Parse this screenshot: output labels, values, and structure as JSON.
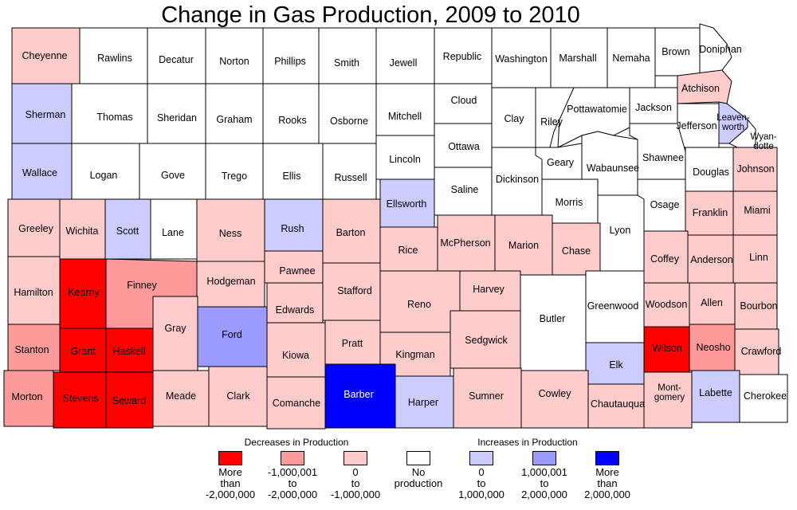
{
  "title": "Change in Gas Production, 2009 to 2010",
  "colors": {
    "dec_more_2m": "#ff0000",
    "dec_1m_2m": "#ff9a9a",
    "dec_0_1m": "#ffcccc",
    "none": "#ffffff",
    "inc_0_1m": "#ccccff",
    "inc_1m_2m": "#9a9aff",
    "inc_more_2m": "#0000ff"
  },
  "legend": {
    "decreases_heading": "Decreases in Production",
    "increases_heading": "Increases in Production",
    "items": [
      {
        "category": "dec_more_2m",
        "label": "More\nthan\n-2,000,000"
      },
      {
        "category": "dec_1m_2m",
        "label": "-1,000,001\nto\n-2,000,000"
      },
      {
        "category": "dec_0_1m",
        "label": "0\nto\n-1,000,000"
      },
      {
        "category": "none",
        "label": "No\nproduction"
      },
      {
        "category": "inc_0_1m",
        "label": "0\nto\n1,000,000"
      },
      {
        "category": "inc_1m_2m",
        "label": "1,000,001\nto\n2,000,000"
      },
      {
        "category": "inc_more_2m",
        "label": "More\nthan\n2,000,000"
      }
    ]
  },
  "counties": [
    {
      "name": "Cheyenne",
      "category": "dec_0_1m"
    },
    {
      "name": "Rawlins",
      "category": "none"
    },
    {
      "name": "Decatur",
      "category": "none"
    },
    {
      "name": "Norton",
      "category": "none"
    },
    {
      "name": "Phillips",
      "category": "none"
    },
    {
      "name": "Smith",
      "category": "none"
    },
    {
      "name": "Jewell",
      "category": "none"
    },
    {
      "name": "Republic",
      "category": "none"
    },
    {
      "name": "Washington",
      "category": "none"
    },
    {
      "name": "Marshall",
      "category": "none"
    },
    {
      "name": "Nemaha",
      "category": "none"
    },
    {
      "name": "Brown",
      "category": "none"
    },
    {
      "name": "Doniphan",
      "category": "none"
    },
    {
      "name": "Sherman",
      "category": "inc_0_1m"
    },
    {
      "name": "Thomas",
      "category": "none"
    },
    {
      "name": "Sheridan",
      "category": "none"
    },
    {
      "name": "Graham",
      "category": "none"
    },
    {
      "name": "Rooks",
      "category": "none"
    },
    {
      "name": "Osborne",
      "category": "none"
    },
    {
      "name": "Mitchell",
      "category": "none"
    },
    {
      "name": "Cloud",
      "category": "none"
    },
    {
      "name": "Clay",
      "category": "none"
    },
    {
      "name": "Riley",
      "category": "none"
    },
    {
      "name": "Pottawatomie",
      "category": "none"
    },
    {
      "name": "Jackson",
      "category": "none"
    },
    {
      "name": "Atchison",
      "category": "dec_0_1m"
    },
    {
      "name": "Jefferson",
      "category": "none"
    },
    {
      "name": "Leaven-\nworth",
      "category": "inc_0_1m"
    },
    {
      "name": "Wyan-\ndotte",
      "category": "none"
    },
    {
      "name": "Wallace",
      "category": "inc_0_1m"
    },
    {
      "name": "Logan",
      "category": "none"
    },
    {
      "name": "Gove",
      "category": "none"
    },
    {
      "name": "Trego",
      "category": "none"
    },
    {
      "name": "Ellis",
      "category": "none"
    },
    {
      "name": "Russell",
      "category": "none"
    },
    {
      "name": "Lincoln",
      "category": "none"
    },
    {
      "name": "Ottawa",
      "category": "none"
    },
    {
      "name": "Saline",
      "category": "none"
    },
    {
      "name": "Dickinson",
      "category": "none"
    },
    {
      "name": "Geary",
      "category": "none"
    },
    {
      "name": "Morris",
      "category": "none"
    },
    {
      "name": "Wabaunsee",
      "category": "none"
    },
    {
      "name": "Shawnee",
      "category": "none"
    },
    {
      "name": "Douglas",
      "category": "none"
    },
    {
      "name": "Johnson",
      "category": "dec_0_1m"
    },
    {
      "name": "Greeley",
      "category": "dec_0_1m"
    },
    {
      "name": "Wichita",
      "category": "dec_0_1m"
    },
    {
      "name": "Scott",
      "category": "inc_0_1m"
    },
    {
      "name": "Lane",
      "category": "none"
    },
    {
      "name": "Ness",
      "category": "dec_0_1m"
    },
    {
      "name": "Rush",
      "category": "inc_0_1m"
    },
    {
      "name": "Barton",
      "category": "dec_0_1m"
    },
    {
      "name": "Ellsworth",
      "category": "inc_0_1m"
    },
    {
      "name": "Rice",
      "category": "dec_0_1m"
    },
    {
      "name": "McPherson",
      "category": "dec_0_1m"
    },
    {
      "name": "Marion",
      "category": "dec_0_1m"
    },
    {
      "name": "Chase",
      "category": "dec_0_1m"
    },
    {
      "name": "Lyon",
      "category": "none"
    },
    {
      "name": "Osage",
      "category": "none"
    },
    {
      "name": "Franklin",
      "category": "dec_0_1m"
    },
    {
      "name": "Miami",
      "category": "dec_0_1m"
    },
    {
      "name": "Hamilton",
      "category": "dec_0_1m"
    },
    {
      "name": "Kearny",
      "category": "dec_more_2m"
    },
    {
      "name": "Finney",
      "category": "dec_1m_2m"
    },
    {
      "name": "Hodgeman",
      "category": "dec_0_1m"
    },
    {
      "name": "Pawnee",
      "category": "dec_0_1m"
    },
    {
      "name": "Stafford",
      "category": "dec_0_1m"
    },
    {
      "name": "Reno",
      "category": "dec_0_1m"
    },
    {
      "name": "Harvey",
      "category": "dec_0_1m"
    },
    {
      "name": "Butler",
      "category": "none"
    },
    {
      "name": "Greenwood",
      "category": "none"
    },
    {
      "name": "Coffey",
      "category": "dec_0_1m"
    },
    {
      "name": "Anderson",
      "category": "dec_0_1m"
    },
    {
      "name": "Linn",
      "category": "dec_0_1m"
    },
    {
      "name": "Gray",
      "category": "dec_0_1m"
    },
    {
      "name": "Ford",
      "category": "inc_1m_2m"
    },
    {
      "name": "Edwards",
      "category": "dec_0_1m"
    },
    {
      "name": "Woodson",
      "category": "dec_0_1m"
    },
    {
      "name": "Allen",
      "category": "dec_0_1m"
    },
    {
      "name": "Bourbon",
      "category": "dec_0_1m"
    },
    {
      "name": "Stanton",
      "category": "dec_1m_2m"
    },
    {
      "name": "Grant",
      "category": "dec_more_2m"
    },
    {
      "name": "Haskell",
      "category": "dec_more_2m"
    },
    {
      "name": "Kiowa",
      "category": "dec_0_1m"
    },
    {
      "name": "Pratt",
      "category": "dec_0_1m"
    },
    {
      "name": "Kingman",
      "category": "dec_0_1m"
    },
    {
      "name": "Sedgwick",
      "category": "dec_0_1m"
    },
    {
      "name": "Elk",
      "category": "inc_0_1m"
    },
    {
      "name": "Wilson",
      "category": "dec_more_2m"
    },
    {
      "name": "Neosho",
      "category": "dec_1m_2m"
    },
    {
      "name": "Crawford",
      "category": "dec_0_1m"
    },
    {
      "name": "Morton",
      "category": "dec_1m_2m"
    },
    {
      "name": "Stevens",
      "category": "dec_more_2m"
    },
    {
      "name": "Seward",
      "category": "dec_more_2m"
    },
    {
      "name": "Meade",
      "category": "dec_0_1m"
    },
    {
      "name": "Clark",
      "category": "dec_0_1m"
    },
    {
      "name": "Comanche",
      "category": "dec_0_1m"
    },
    {
      "name": "Barber",
      "category": "inc_more_2m"
    },
    {
      "name": "Harper",
      "category": "inc_0_1m"
    },
    {
      "name": "Sumner",
      "category": "dec_0_1m"
    },
    {
      "name": "Cowley",
      "category": "dec_0_1m"
    },
    {
      "name": "Chautauqua",
      "category": "dec_0_1m"
    },
    {
      "name": "Mont-\ngomery",
      "category": "dec_0_1m"
    },
    {
      "name": "Labette",
      "category": "inc_0_1m"
    },
    {
      "name": "Cherokee",
      "category": "none"
    }
  ]
}
